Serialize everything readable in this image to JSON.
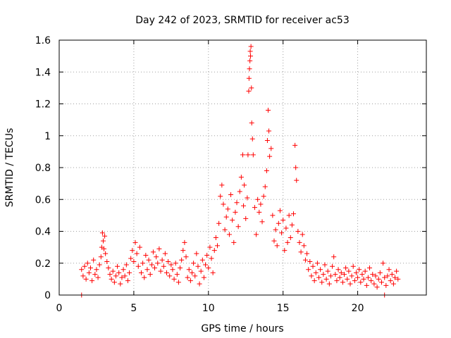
{
  "chart_data": {
    "type": "scatter",
    "title": "Day 242 of 2023, SRMTID for receiver ac53",
    "xlabel": "GPS time / hours",
    "ylabel": "SRMTID / TECUs",
    "xlim": [
      0,
      24.6
    ],
    "ylim": [
      0,
      1.6
    ],
    "grid": true,
    "marker": "+",
    "color": "#ff0000",
    "xticks": [
      0,
      5,
      10,
      15,
      20
    ],
    "yticks": [
      0,
      0.2,
      0.4,
      0.6,
      0.8,
      1,
      1.2,
      1.4,
      1.6
    ],
    "ytick_labels": [
      "0",
      "0.2",
      "0.4",
      "0.6",
      "0.8",
      "1",
      "1.2",
      "1.4",
      "1.6"
    ],
    "series": [
      {
        "name": "SRMTID",
        "points": [
          [
            1.5,
            0.0
          ],
          [
            21.8,
            0.0
          ],
          [
            1.5,
            0.16
          ],
          [
            1.6,
            0.12
          ],
          [
            1.7,
            0.18
          ],
          [
            1.8,
            0.1
          ],
          [
            1.9,
            0.2
          ],
          [
            2.0,
            0.14
          ],
          [
            2.1,
            0.17
          ],
          [
            2.2,
            0.09
          ],
          [
            2.3,
            0.22
          ],
          [
            2.4,
            0.13
          ],
          [
            2.5,
            0.16
          ],
          [
            2.6,
            0.11
          ],
          [
            2.7,
            0.19
          ],
          [
            2.8,
            0.24
          ],
          [
            2.85,
            0.3
          ],
          [
            2.9,
            0.39
          ],
          [
            2.95,
            0.34
          ],
          [
            3.0,
            0.29
          ],
          [
            3.05,
            0.37
          ],
          [
            3.1,
            0.26
          ],
          [
            3.2,
            0.21
          ],
          [
            3.3,
            0.17
          ],
          [
            3.4,
            0.13
          ],
          [
            3.5,
            0.1
          ],
          [
            3.6,
            0.15
          ],
          [
            3.7,
            0.08
          ],
          [
            3.8,
            0.12
          ],
          [
            3.9,
            0.18
          ],
          [
            4.0,
            0.14
          ],
          [
            4.1,
            0.07
          ],
          [
            4.2,
            0.11
          ],
          [
            4.3,
            0.16
          ],
          [
            4.4,
            0.12
          ],
          [
            4.5,
            0.19
          ],
          [
            4.6,
            0.09
          ],
          [
            4.7,
            0.14
          ],
          [
            4.8,
            0.23
          ],
          [
            4.9,
            0.28
          ],
          [
            5.0,
            0.21
          ],
          [
            5.1,
            0.33
          ],
          [
            5.2,
            0.26
          ],
          [
            5.3,
            0.18
          ],
          [
            5.4,
            0.3
          ],
          [
            5.5,
            0.14
          ],
          [
            5.6,
            0.2
          ],
          [
            5.7,
            0.11
          ],
          [
            5.8,
            0.25
          ],
          [
            5.9,
            0.16
          ],
          [
            6.0,
            0.22
          ],
          [
            6.1,
            0.13
          ],
          [
            6.2,
            0.19
          ],
          [
            6.3,
            0.27
          ],
          [
            6.4,
            0.17
          ],
          [
            6.5,
            0.24
          ],
          [
            6.6,
            0.2
          ],
          [
            6.7,
            0.29
          ],
          [
            6.8,
            0.15
          ],
          [
            6.9,
            0.22
          ],
          [
            7.0,
            0.18
          ],
          [
            7.1,
            0.26
          ],
          [
            7.2,
            0.14
          ],
          [
            7.3,
            0.21
          ],
          [
            7.4,
            0.12
          ],
          [
            7.5,
            0.19
          ],
          [
            7.6,
            0.16
          ],
          [
            7.7,
            0.1
          ],
          [
            7.8,
            0.2
          ],
          [
            7.9,
            0.13
          ],
          [
            8.0,
            0.08
          ],
          [
            8.1,
            0.17
          ],
          [
            8.2,
            0.22
          ],
          [
            8.3,
            0.28
          ],
          [
            8.4,
            0.33
          ],
          [
            8.5,
            0.24
          ],
          [
            8.6,
            0.11
          ],
          [
            8.7,
            0.16
          ],
          [
            8.8,
            0.09
          ],
          [
            8.9,
            0.14
          ],
          [
            9.0,
            0.2
          ],
          [
            9.1,
            0.12
          ],
          [
            9.2,
            0.26
          ],
          [
            9.3,
            0.18
          ],
          [
            9.4,
            0.07
          ],
          [
            9.5,
            0.15
          ],
          [
            9.6,
            0.22
          ],
          [
            9.7,
            0.11
          ],
          [
            9.8,
            0.19
          ],
          [
            9.9,
            0.25
          ],
          [
            10.0,
            0.17
          ],
          [
            10.1,
            0.3
          ],
          [
            10.2,
            0.23
          ],
          [
            10.3,
            0.14
          ],
          [
            10.4,
            0.28
          ],
          [
            10.5,
            0.36
          ],
          [
            10.6,
            0.31
          ],
          [
            10.7,
            0.45
          ],
          [
            10.8,
            0.62
          ],
          [
            10.9,
            0.69
          ],
          [
            11.0,
            0.57
          ],
          [
            11.1,
            0.41
          ],
          [
            11.2,
            0.49
          ],
          [
            11.3,
            0.54
          ],
          [
            11.4,
            0.38
          ],
          [
            11.5,
            0.63
          ],
          [
            11.6,
            0.47
          ],
          [
            11.7,
            0.33
          ],
          [
            11.8,
            0.52
          ],
          [
            11.9,
            0.58
          ],
          [
            12.0,
            0.43
          ],
          [
            12.1,
            0.65
          ],
          [
            12.2,
            0.74
          ],
          [
            12.3,
            0.88
          ],
          [
            12.35,
            0.56
          ],
          [
            12.4,
            0.69
          ],
          [
            12.5,
            0.48
          ],
          [
            12.6,
            0.61
          ],
          [
            12.65,
            0.88
          ],
          [
            12.7,
            1.28
          ],
          [
            12.72,
            1.36
          ],
          [
            12.75,
            1.42
          ],
          [
            12.78,
            1.47
          ],
          [
            12.8,
            1.53
          ],
          [
            12.82,
            1.5
          ],
          [
            12.85,
            1.56
          ],
          [
            12.88,
            1.3
          ],
          [
            12.9,
            1.08
          ],
          [
            12.95,
            0.98
          ],
          [
            13.0,
            0.88
          ],
          [
            13.1,
            0.55
          ],
          [
            13.2,
            0.38
          ],
          [
            13.3,
            0.6
          ],
          [
            13.4,
            0.52
          ],
          [
            13.5,
            0.57
          ],
          [
            13.6,
            0.46
          ],
          [
            13.7,
            0.62
          ],
          [
            13.8,
            0.68
          ],
          [
            13.9,
            0.78
          ],
          [
            13.95,
            0.97
          ],
          [
            14.0,
            1.16
          ],
          [
            14.05,
            1.03
          ],
          [
            14.1,
            0.87
          ],
          [
            14.2,
            0.92
          ],
          [
            14.3,
            0.5
          ],
          [
            14.4,
            0.34
          ],
          [
            14.5,
            0.41
          ],
          [
            14.6,
            0.31
          ],
          [
            14.7,
            0.45
          ],
          [
            14.8,
            0.53
          ],
          [
            14.9,
            0.39
          ],
          [
            15.0,
            0.47
          ],
          [
            15.1,
            0.28
          ],
          [
            15.2,
            0.42
          ],
          [
            15.3,
            0.33
          ],
          [
            15.4,
            0.5
          ],
          [
            15.5,
            0.36
          ],
          [
            15.6,
            0.44
          ],
          [
            15.7,
            0.51
          ],
          [
            15.8,
            0.94
          ],
          [
            15.85,
            0.8
          ],
          [
            15.9,
            0.72
          ],
          [
            16.0,
            0.4
          ],
          [
            16.1,
            0.33
          ],
          [
            16.2,
            0.27
          ],
          [
            16.3,
            0.38
          ],
          [
            16.4,
            0.31
          ],
          [
            16.5,
            0.22
          ],
          [
            16.6,
            0.26
          ],
          [
            16.7,
            0.16
          ],
          [
            16.8,
            0.21
          ],
          [
            16.9,
            0.12
          ],
          [
            17.0,
            0.18
          ],
          [
            17.1,
            0.09
          ],
          [
            17.2,
            0.14
          ],
          [
            17.3,
            0.2
          ],
          [
            17.4,
            0.11
          ],
          [
            17.5,
            0.16
          ],
          [
            17.6,
            0.08
          ],
          [
            17.7,
            0.13
          ],
          [
            17.8,
            0.19
          ],
          [
            17.9,
            0.1
          ],
          [
            18.0,
            0.15
          ],
          [
            18.1,
            0.07
          ],
          [
            18.2,
            0.12
          ],
          [
            18.3,
            0.18
          ],
          [
            18.4,
            0.24
          ],
          [
            18.5,
            0.13
          ],
          [
            18.6,
            0.09
          ],
          [
            18.7,
            0.16
          ],
          [
            18.8,
            0.11
          ],
          [
            18.9,
            0.14
          ],
          [
            19.0,
            0.08
          ],
          [
            19.1,
            0.13
          ],
          [
            19.2,
            0.17
          ],
          [
            19.3,
            0.1
          ],
          [
            19.4,
            0.15
          ],
          [
            19.5,
            0.07
          ],
          [
            19.6,
            0.12
          ],
          [
            19.7,
            0.18
          ],
          [
            19.8,
            0.09
          ],
          [
            19.9,
            0.14
          ],
          [
            20.0,
            0.11
          ],
          [
            20.1,
            0.16
          ],
          [
            20.2,
            0.08
          ],
          [
            20.3,
            0.13
          ],
          [
            20.4,
            0.1
          ],
          [
            20.5,
            0.15
          ],
          [
            20.6,
            0.06
          ],
          [
            20.7,
            0.11
          ],
          [
            20.8,
            0.17
          ],
          [
            20.9,
            0.09
          ],
          [
            21.0,
            0.13
          ],
          [
            21.1,
            0.07
          ],
          [
            21.2,
            0.12
          ],
          [
            21.3,
            0.05
          ],
          [
            21.4,
            0.1
          ],
          [
            21.5,
            0.14
          ],
          [
            21.6,
            0.08
          ],
          [
            21.7,
            0.2
          ],
          [
            21.8,
            0.11
          ],
          [
            21.9,
            0.06
          ],
          [
            22.0,
            0.12
          ],
          [
            22.1,
            0.16
          ],
          [
            22.2,
            0.09
          ],
          [
            22.3,
            0.13
          ],
          [
            22.4,
            0.07
          ],
          [
            22.5,
            0.11
          ],
          [
            22.6,
            0.15
          ],
          [
            22.7,
            0.1
          ]
        ]
      }
    ]
  }
}
